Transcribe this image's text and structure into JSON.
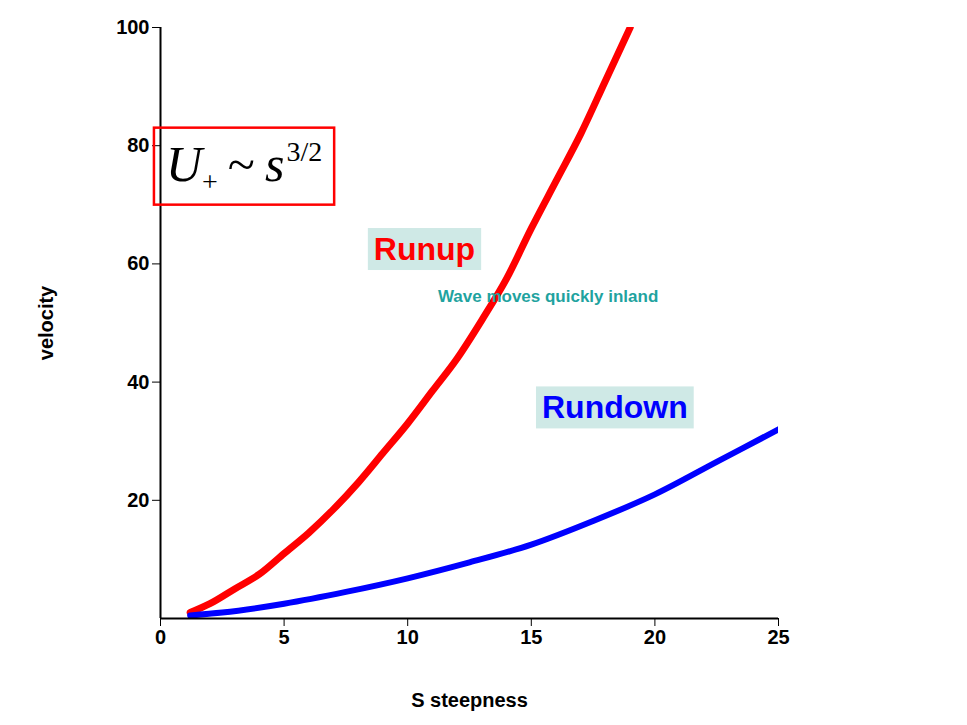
{
  "chart_data": {
    "type": "line",
    "xlabel": "S steepness",
    "ylabel": "velocity",
    "xlim": [
      0,
      25
    ],
    "xticks": [
      0,
      5,
      10,
      15,
      20,
      25
    ],
    "ylim": [
      0,
      100
    ],
    "yticks": [
      20,
      40,
      60,
      80,
      100
    ],
    "series": [
      {
        "name": "Runup",
        "color": "#ff0000",
        "x": [
          1.2,
          2,
          3,
          4,
          5,
          6,
          7,
          8,
          9,
          10,
          11,
          12,
          13,
          14,
          15,
          16,
          17,
          18,
          19
        ],
        "values": [
          1,
          2.5,
          5,
          7.5,
          11,
          14.5,
          18.5,
          23,
          28,
          33,
          38.5,
          44,
          50.5,
          57.5,
          66,
          74,
          82,
          91,
          100
        ]
      },
      {
        "name": "Rundown",
        "color": "#0000ff",
        "x": [
          1.2,
          2.5,
          5,
          7.5,
          10,
          12.5,
          15,
          17.5,
          20,
          22.5,
          25
        ],
        "values": [
          0.5,
          1,
          2.5,
          4.5,
          6.8,
          9.5,
          12.5,
          16.5,
          21,
          26.5,
          32
        ]
      }
    ],
    "annotations": [
      {
        "formula": {
          "base": "U",
          "subscript": "+",
          "relation": "~",
          "variable": "s",
          "exponent": "3/2"
        },
        "color": "#ff0000"
      },
      {
        "text": "Wave moves quickly inland",
        "color": "#1fa3a0"
      }
    ]
  }
}
